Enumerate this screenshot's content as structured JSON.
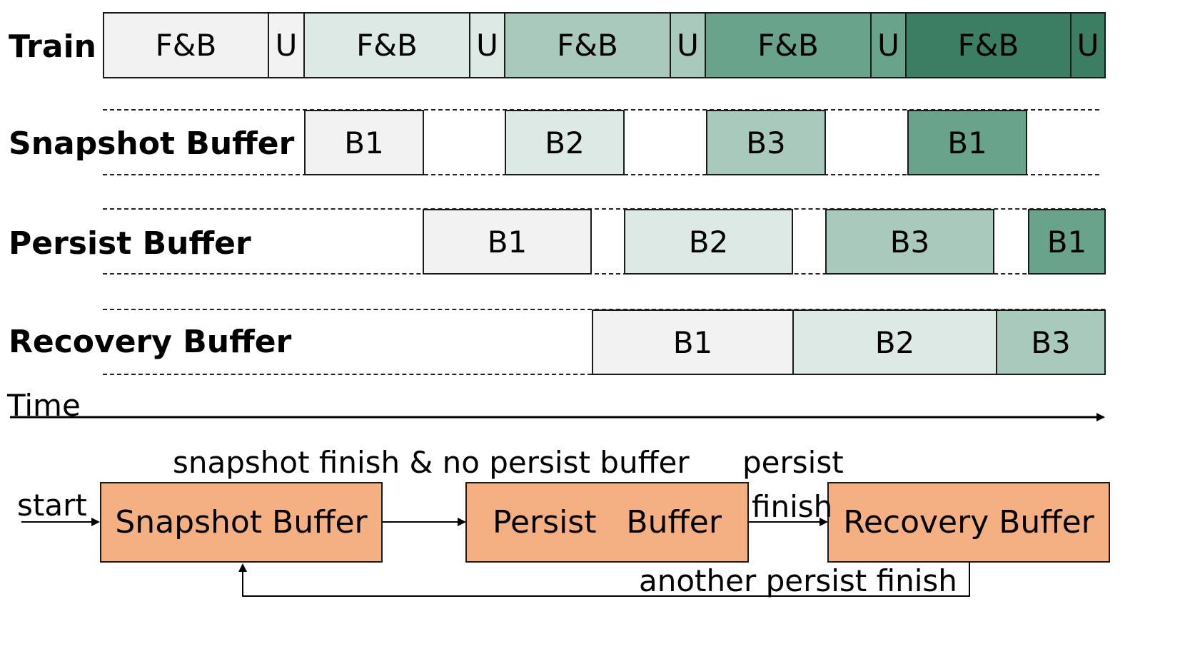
{
  "rows": {
    "train": "Train",
    "snapshot": "Snapshot Buffer",
    "persist": "Persist Buffer",
    "recovery": "Recovery Buffer"
  },
  "train_blocks": [
    "F&B",
    "U",
    "F&B",
    "U",
    "F&B",
    "U",
    "F&B",
    "U",
    "F&B",
    "U"
  ],
  "snapshot_blocks": [
    "B1",
    "B2",
    "B3",
    "B1"
  ],
  "persist_blocks": [
    "B1",
    "B2",
    "B3",
    "B1"
  ],
  "recovery_blocks": [
    "B1",
    "B2",
    "B3"
  ],
  "time_label": "Time",
  "colors": {
    "shade1": "#f2f2f2",
    "shade2": "#dde9e5",
    "shade3": "#a9c9bd",
    "shade4": "#6aa38c",
    "shade5": "#3c7e64",
    "state_fill": "#f4b083"
  },
  "state_machine": {
    "start": "start",
    "states": [
      "Snapshot Buffer",
      "Persist   Buffer",
      "Recovery Buffer"
    ],
    "edge_snapshot_to_persist": "snapshot finish & no persist buffer",
    "edge_persist_to_recovery_line1": "persist",
    "edge_persist_to_recovery_line2": "finish",
    "edge_recovery_to_snapshot": "another persist finish"
  }
}
